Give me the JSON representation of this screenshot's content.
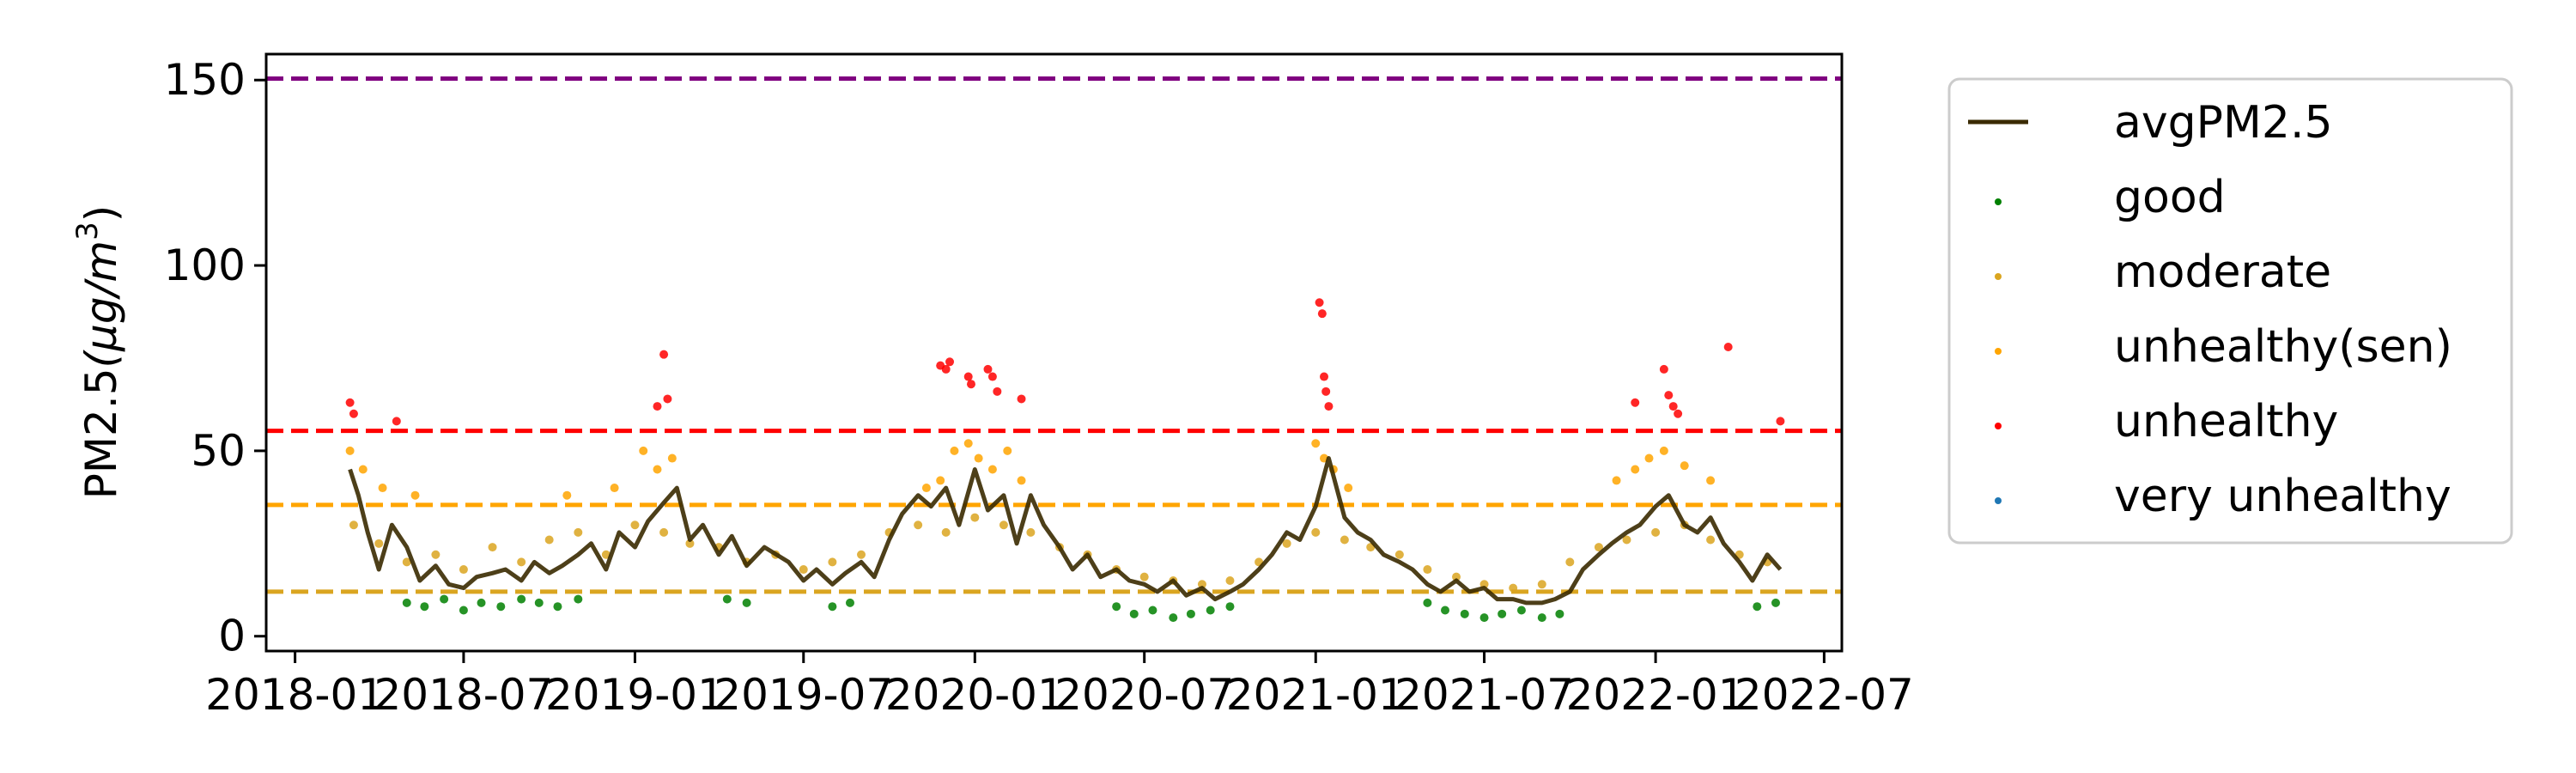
{
  "chart_data": {
    "type": "scatter",
    "title": "",
    "xlabel": "",
    "ylabel": "PM2.5",
    "ylabel_unit": "(μg/m",
    "ylabel_exp": "3",
    "ylabel_close": ")",
    "xlim": [
      "2017-12-01",
      "2022-07-20"
    ],
    "ylim": [
      -4,
      157
    ],
    "x_ticks": [
      "2018-01",
      "2018-07",
      "2019-01",
      "2019-07",
      "2020-01",
      "2020-07",
      "2021-01",
      "2021-07",
      "2022-01",
      "2022-07"
    ],
    "y_ticks": [
      0,
      50,
      100,
      150
    ],
    "grid": false,
    "legend_position": "outside-right",
    "thresholds": [
      {
        "value": 12,
        "color": "#DAA520"
      },
      {
        "value": 35.4,
        "color": "#FFA500"
      },
      {
        "value": 55.4,
        "color": "#FF0000"
      },
      {
        "value": 150.4,
        "color": "#800080"
      }
    ],
    "series": [
      {
        "name": "avgPM2.5",
        "kind": "line",
        "color": "#3a2a00",
        "x": [
          "2018-03-01",
          "2018-03-10",
          "2018-03-20",
          "2018-04-01",
          "2018-04-15",
          "2018-05-01",
          "2018-05-15",
          "2018-06-01",
          "2018-06-15",
          "2018-07-01",
          "2018-07-15",
          "2018-08-01",
          "2018-08-15",
          "2018-09-01",
          "2018-09-15",
          "2018-10-01",
          "2018-10-15",
          "2018-11-01",
          "2018-11-15",
          "2018-12-01",
          "2018-12-15",
          "2019-01-01",
          "2019-01-15",
          "2019-02-01",
          "2019-02-15",
          "2019-03-01",
          "2019-03-15",
          "2019-04-01",
          "2019-04-15",
          "2019-05-01",
          "2019-05-20",
          "2019-06-15",
          "2019-07-01",
          "2019-07-15",
          "2019-08-01",
          "2019-08-15",
          "2019-09-01",
          "2019-09-15",
          "2019-10-01",
          "2019-10-15",
          "2019-11-01",
          "2019-11-15",
          "2019-12-01",
          "2019-12-15",
          "2020-01-01",
          "2020-01-15",
          "2020-02-01",
          "2020-02-15",
          "2020-03-01",
          "2020-03-15",
          "2020-04-01",
          "2020-04-15",
          "2020-05-01",
          "2020-05-15",
          "2020-06-01",
          "2020-06-15",
          "2020-07-01",
          "2020-07-15",
          "2020-08-01",
          "2020-08-15",
          "2020-09-01",
          "2020-09-15",
          "2020-10-01",
          "2020-10-15",
          "2020-11-01",
          "2020-11-15",
          "2020-12-01",
          "2020-12-15",
          "2021-01-01",
          "2021-01-15",
          "2021-02-01",
          "2021-02-15",
          "2021-03-01",
          "2021-03-15",
          "2021-04-01",
          "2021-04-15",
          "2021-05-01",
          "2021-05-15",
          "2021-06-01",
          "2021-06-15",
          "2021-07-01",
          "2021-07-15",
          "2021-08-01",
          "2021-08-15",
          "2021-09-01",
          "2021-09-15",
          "2021-10-01",
          "2021-10-15",
          "2021-11-01",
          "2021-11-15",
          "2021-12-01",
          "2021-12-15",
          "2022-01-01",
          "2022-01-15",
          "2022-02-01",
          "2022-02-15",
          "2022-03-01",
          "2022-03-15",
          "2022-04-01",
          "2022-04-15",
          "2022-05-01",
          "2022-05-15"
        ],
        "y": [
          45,
          38,
          28,
          18,
          30,
          24,
          15,
          19,
          14,
          13,
          16,
          17,
          18,
          15,
          20,
          17,
          19,
          22,
          25,
          18,
          28,
          24,
          31,
          36,
          40,
          26,
          30,
          22,
          27,
          19,
          24,
          20,
          15,
          18,
          14,
          17,
          20,
          16,
          26,
          33,
          38,
          35,
          40,
          30,
          45,
          34,
          38,
          25,
          38,
          30,
          24,
          18,
          22,
          16,
          18,
          15,
          14,
          12,
          15,
          11,
          13,
          10,
          12,
          14,
          18,
          22,
          28,
          26,
          35,
          48,
          32,
          28,
          26,
          22,
          20,
          18,
          14,
          12,
          15,
          12,
          13,
          10,
          10,
          9,
          9,
          10,
          12,
          18,
          22,
          25,
          28,
          30,
          35,
          38,
          30,
          28,
          32,
          25,
          20,
          15,
          22,
          18
        ]
      },
      {
        "name": "good",
        "kind": "points",
        "color": "#008000",
        "x": [
          "2018-05-01",
          "2018-05-20",
          "2018-06-10",
          "2018-07-01",
          "2018-07-20",
          "2018-08-10",
          "2018-09-01",
          "2018-09-20",
          "2018-10-10",
          "2018-11-01",
          "2019-04-10",
          "2019-05-01",
          "2019-08-01",
          "2019-08-20",
          "2020-06-01",
          "2020-06-20",
          "2020-07-10",
          "2020-08-01",
          "2020-08-20",
          "2020-09-10",
          "2020-10-01",
          "2021-05-01",
          "2021-05-20",
          "2021-06-10",
          "2021-07-01",
          "2021-07-20",
          "2021-08-10",
          "2021-09-01",
          "2021-09-20",
          "2022-04-20",
          "2022-05-10"
        ],
        "y": [
          9,
          8,
          10,
          7,
          9,
          8,
          10,
          9,
          8,
          10,
          10,
          9,
          8,
          9,
          8,
          6,
          7,
          5,
          6,
          7,
          8,
          9,
          7,
          6,
          5,
          6,
          7,
          5,
          6,
          8,
          9
        ]
      },
      {
        "name": "moderate",
        "kind": "points",
        "color": "#DAA520",
        "x": [
          "2018-03-05",
          "2018-04-01",
          "2018-05-01",
          "2018-06-01",
          "2018-07-01",
          "2018-08-01",
          "2018-09-01",
          "2018-10-01",
          "2018-11-01",
          "2018-12-01",
          "2019-01-01",
          "2019-02-01",
          "2019-03-01",
          "2019-04-01",
          "2019-05-01",
          "2019-06-01",
          "2019-07-01",
          "2019-08-01",
          "2019-09-01",
          "2019-10-01",
          "2019-11-01",
          "2019-12-01",
          "2020-01-01",
          "2020-02-01",
          "2020-03-01",
          "2020-04-01",
          "2020-05-01",
          "2020-06-01",
          "2020-07-01",
          "2020-08-01",
          "2020-09-01",
          "2020-10-01",
          "2020-11-01",
          "2020-12-01",
          "2021-01-01",
          "2021-02-01",
          "2021-03-01",
          "2021-04-01",
          "2021-05-01",
          "2021-06-01",
          "2021-07-01",
          "2021-08-01",
          "2021-09-01",
          "2021-10-01",
          "2021-11-01",
          "2021-12-01",
          "2022-01-01",
          "2022-02-01",
          "2022-03-01",
          "2022-04-01",
          "2022-05-01"
        ],
        "y": [
          30,
          25,
          20,
          22,
          18,
          24,
          20,
          26,
          28,
          22,
          30,
          28,
          25,
          24,
          20,
          22,
          18,
          20,
          22,
          28,
          30,
          28,
          32,
          30,
          28,
          24,
          22,
          18,
          16,
          15,
          14,
          15,
          20,
          25,
          28,
          26,
          24,
          22,
          18,
          16,
          14,
          13,
          14,
          20,
          24,
          26,
          28,
          30,
          26,
          22,
          20
        ]
      },
      {
        "name": "unhealthy(sen)",
        "kind": "points",
        "color": "#FFA500",
        "x": [
          "2018-03-01",
          "2018-03-15",
          "2018-04-05",
          "2018-05-10",
          "2018-10-20",
          "2018-12-10",
          "2019-01-10",
          "2019-01-25",
          "2019-02-10",
          "2019-11-10",
          "2019-11-25",
          "2019-12-10",
          "2019-12-25",
          "2020-01-05",
          "2020-01-20",
          "2020-02-05",
          "2020-02-20",
          "2021-01-01",
          "2021-01-10",
          "2021-01-20",
          "2021-02-05",
          "2021-11-20",
          "2021-12-10",
          "2021-12-25",
          "2022-01-10",
          "2022-02-01",
          "2022-03-01"
        ],
        "y": [
          50,
          45,
          40,
          38,
          38,
          40,
          50,
          45,
          48,
          40,
          42,
          50,
          52,
          48,
          45,
          50,
          42,
          52,
          48,
          45,
          40,
          42,
          45,
          48,
          50,
          46,
          42
        ]
      },
      {
        "name": "unhealthy",
        "kind": "points",
        "color": "#FF0000",
        "x": [
          "2018-03-01",
          "2018-03-05",
          "2018-04-20",
          "2019-02-01",
          "2019-01-25",
          "2019-02-05",
          "2019-11-25",
          "2019-12-01",
          "2019-12-05",
          "2019-12-25",
          "2019-12-28",
          "2020-01-15",
          "2020-01-20",
          "2020-01-25",
          "2020-02-20",
          "2021-01-05",
          "2021-01-08",
          "2021-01-10",
          "2021-01-12",
          "2021-01-15",
          "2021-12-10",
          "2022-01-10",
          "2022-01-15",
          "2022-01-20",
          "2022-01-25",
          "2022-03-20",
          "2022-05-15"
        ],
        "y": [
          63,
          60,
          58,
          76,
          62,
          64,
          73,
          72,
          74,
          70,
          68,
          72,
          70,
          66,
          64,
          90,
          87,
          70,
          66,
          62,
          63,
          72,
          65,
          62,
          60,
          78,
          58
        ]
      },
      {
        "name": "very unhealthy",
        "kind": "points",
        "color": "#1f77b4",
        "x": [],
        "y": []
      }
    ]
  }
}
